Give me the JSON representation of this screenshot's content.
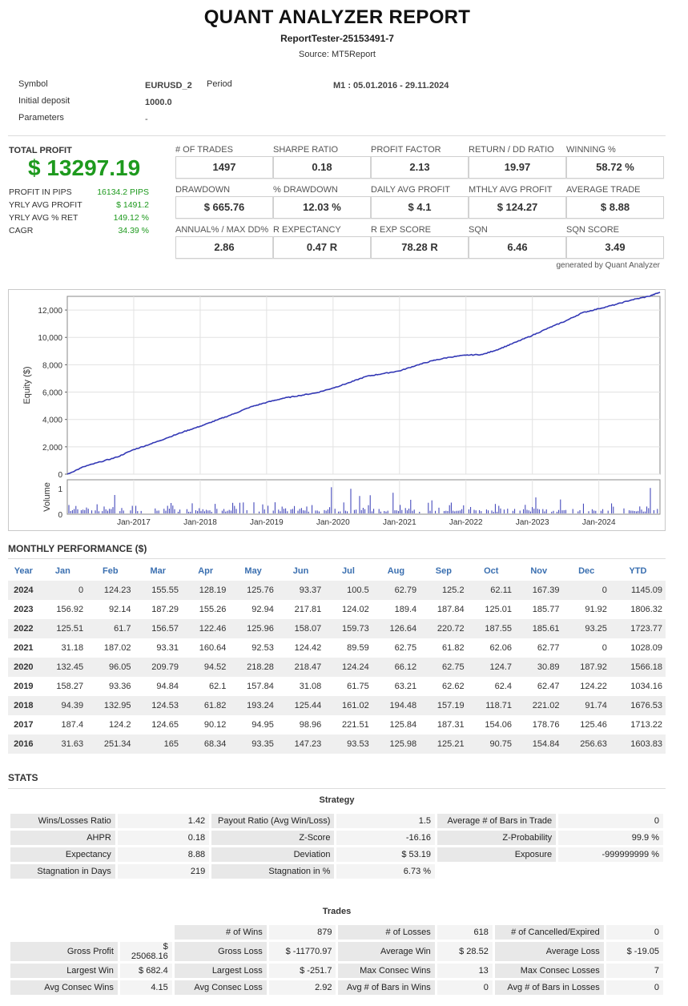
{
  "header": {
    "title": "QUANT ANALYZER REPORT",
    "report_name": "ReportTester-25153491-7",
    "source_label": "Source:",
    "source_value": "MT5Report"
  },
  "info": {
    "symbol_label": "Symbol",
    "symbol_value": "EURUSD_2",
    "period_label": "Period",
    "period_value": "M1 : 05.01.2016 - 29.11.2024",
    "deposit_label": "Initial deposit",
    "deposit_value": "1000.0",
    "parameters_label": "Parameters",
    "parameters_value": "-"
  },
  "total_profit": {
    "label": "TOTAL PROFIT",
    "value": "$ 13297.19",
    "rows": [
      {
        "label": "PROFIT IN PIPS",
        "value": "16134.2 PIPS"
      },
      {
        "label": "YRLY AVG PROFIT",
        "value": "$ 1491.2"
      },
      {
        "label": "YRLY AVG % RET",
        "value": "149.12 %"
      },
      {
        "label": "CAGR",
        "value": "34.39 %"
      }
    ]
  },
  "metrics": [
    [
      {
        "label": "# OF TRADES",
        "value": "1497"
      },
      {
        "label": "SHARPE RATIO",
        "value": "0.18"
      },
      {
        "label": "PROFIT FACTOR",
        "value": "2.13"
      },
      {
        "label": "RETURN / DD RATIO",
        "value": "19.97"
      },
      {
        "label": "WINNING %",
        "value": "58.72 %"
      }
    ],
    [
      {
        "label": "DRAWDOWN",
        "value": "$ 665.76"
      },
      {
        "label": "% DRAWDOWN",
        "value": "12.03 %"
      },
      {
        "label": "DAILY AVG PROFIT",
        "value": "$ 4.1"
      },
      {
        "label": "MTHLY AVG PROFIT",
        "value": "$ 124.27"
      },
      {
        "label": "AVERAGE TRADE",
        "value": "$ 8.88"
      }
    ],
    [
      {
        "label": "ANNUAL% / MAX DD%",
        "value": "2.86"
      },
      {
        "label": "R EXPECTANCY",
        "value": "0.47 R"
      },
      {
        "label": "R EXP SCORE",
        "value": "78.28 R"
      },
      {
        "label": "SQN",
        "value": "6.46"
      },
      {
        "label": "SQN SCORE",
        "value": "3.49"
      }
    ]
  ],
  "generated_by": "generated by Quant Analyzer",
  "chart_data": {
    "type": "line",
    "ylabel": "Equity ($)",
    "ylabel2": "Volume",
    "ylim": [
      0,
      13000
    ],
    "yticks": [
      "12,000",
      "10,000",
      "8,000",
      "6,000",
      "4,000",
      "2,000",
      "0"
    ],
    "ytick_values": [
      12000,
      10000,
      8000,
      6000,
      4000,
      2000,
      0
    ],
    "volume_yticks": [
      "1",
      "0"
    ],
    "xticks": [
      "Jan-2017",
      "Jan-2018",
      "Jan-2019",
      "Jan-2020",
      "Jan-2021",
      "Jan-2022",
      "Jan-2023",
      "Jan-2024"
    ],
    "xtick_values": [
      2017,
      2018,
      2019,
      2020,
      2021,
      2022,
      2023,
      2024
    ],
    "xlim": [
      2016.0,
      2024.92
    ],
    "series": [
      {
        "color": "#3338b5",
        "x": [
          2016.0,
          2016.25,
          2016.5,
          2016.75,
          2017.0,
          2017.25,
          2017.5,
          2017.75,
          2018.0,
          2018.25,
          2018.5,
          2018.75,
          2019.0,
          2019.25,
          2019.5,
          2019.75,
          2020.0,
          2020.25,
          2020.5,
          2020.75,
          2021.0,
          2021.25,
          2021.5,
          2021.75,
          2022.0,
          2022.25,
          2022.5,
          2022.75,
          2023.0,
          2023.25,
          2023.5,
          2023.75,
          2024.0,
          2024.25,
          2024.5,
          2024.75,
          2024.92
        ],
        "y": [
          0,
          550,
          900,
          1250,
          1800,
          2200,
          2650,
          3100,
          3500,
          3950,
          4400,
          4900,
          5250,
          5550,
          5750,
          5950,
          6300,
          6700,
          7150,
          7350,
          7550,
          7950,
          8300,
          8550,
          8700,
          8750,
          9150,
          9650,
          10150,
          10700,
          11200,
          11800,
          12100,
          12400,
          12750,
          13000,
          13297
        ]
      }
    ],
    "volume_color": "#3338b5"
  },
  "monthly": {
    "title": "MONTHLY PERFORMANCE ($)",
    "headers": [
      "Year",
      "Jan",
      "Feb",
      "Mar",
      "Apr",
      "May",
      "Jun",
      "Jul",
      "Aug",
      "Sep",
      "Oct",
      "Nov",
      "Dec",
      "YTD"
    ],
    "rows": [
      [
        "2024",
        "0",
        "124.23",
        "155.55",
        "128.19",
        "125.76",
        "93.37",
        "100.5",
        "62.79",
        "125.2",
        "62.11",
        "167.39",
        "0",
        "1145.09"
      ],
      [
        "2023",
        "156.92",
        "92.14",
        "187.29",
        "155.26",
        "92.94",
        "217.81",
        "124.02",
        "189.4",
        "187.84",
        "125.01",
        "185.77",
        "91.92",
        "1806.32"
      ],
      [
        "2022",
        "125.51",
        "61.7",
        "156.57",
        "122.46",
        "125.96",
        "158.07",
        "159.73",
        "126.64",
        "220.72",
        "187.55",
        "185.61",
        "93.25",
        "1723.77"
      ],
      [
        "2021",
        "31.18",
        "187.02",
        "93.31",
        "160.64",
        "92.53",
        "124.42",
        "89.59",
        "62.75",
        "61.82",
        "62.06",
        "62.77",
        "0",
        "1028.09"
      ],
      [
        "2020",
        "132.45",
        "96.05",
        "209.79",
        "94.52",
        "218.28",
        "218.47",
        "124.24",
        "66.12",
        "62.75",
        "124.7",
        "30.89",
        "187.92",
        "1566.18"
      ],
      [
        "2019",
        "158.27",
        "93.36",
        "94.84",
        "62.1",
        "157.84",
        "31.08",
        "61.75",
        "63.21",
        "62.62",
        "62.4",
        "62.47",
        "124.22",
        "1034.16"
      ],
      [
        "2018",
        "94.39",
        "132.95",
        "124.53",
        "61.82",
        "193.24",
        "125.44",
        "161.02",
        "194.48",
        "157.19",
        "118.71",
        "221.02",
        "91.74",
        "1676.53"
      ],
      [
        "2017",
        "187.4",
        "124.2",
        "124.65",
        "90.12",
        "94.95",
        "98.96",
        "221.51",
        "125.84",
        "187.31",
        "154.06",
        "178.76",
        "125.46",
        "1713.22"
      ],
      [
        "2016",
        "31.63",
        "251.34",
        "165",
        "68.34",
        "93.35",
        "147.23",
        "93.53",
        "125.98",
        "125.21",
        "90.75",
        "154.84",
        "256.63",
        "1603.83"
      ]
    ]
  },
  "stats": {
    "title": "STATS",
    "strategy_title": "Strategy",
    "strategy_rows": [
      [
        [
          "Wins/Losses Ratio",
          "1.42"
        ],
        [
          "Payout Ratio (Avg Win/Loss)",
          "1.5"
        ],
        [
          "Average # of Bars in Trade",
          "0"
        ]
      ],
      [
        [
          "AHPR",
          "0.18"
        ],
        [
          "Z-Score",
          "-16.16"
        ],
        [
          "Z-Probability",
          "99.9 %"
        ]
      ],
      [
        [
          "Expectancy",
          "8.88"
        ],
        [
          "Deviation",
          "$ 53.19"
        ],
        [
          "Exposure",
          "-999999999 %"
        ]
      ],
      [
        [
          "Stagnation in Days",
          "219"
        ],
        [
          "Stagnation in %",
          "6.73 %"
        ],
        [
          "",
          ""
        ]
      ]
    ],
    "trades_title": "Trades",
    "trades_rows": [
      [
        [
          "",
          ""
        ],
        [
          "# of Wins",
          "879"
        ],
        [
          "# of Losses",
          "618"
        ],
        [
          "# of Cancelled/Expired",
          "0"
        ]
      ],
      [
        [
          "Gross Profit",
          "$ 25068.16"
        ],
        [
          "Gross Loss",
          "$ -11770.97"
        ],
        [
          "Average Win",
          "$ 28.52"
        ],
        [
          "Average Loss",
          "$ -19.05"
        ]
      ],
      [
        [
          "Largest Win",
          "$ 682.4"
        ],
        [
          "Largest Loss",
          "$ -251.7"
        ],
        [
          "Max Consec Wins",
          "13"
        ],
        [
          "Max Consec Losses",
          "7"
        ]
      ],
      [
        [
          "Avg Consec Wins",
          "4.15"
        ],
        [
          "Avg Consec Loss",
          "2.92"
        ],
        [
          "Avg # of Bars in Wins",
          "0"
        ],
        [
          "Avg # of Bars in Losses",
          "0"
        ]
      ]
    ]
  }
}
